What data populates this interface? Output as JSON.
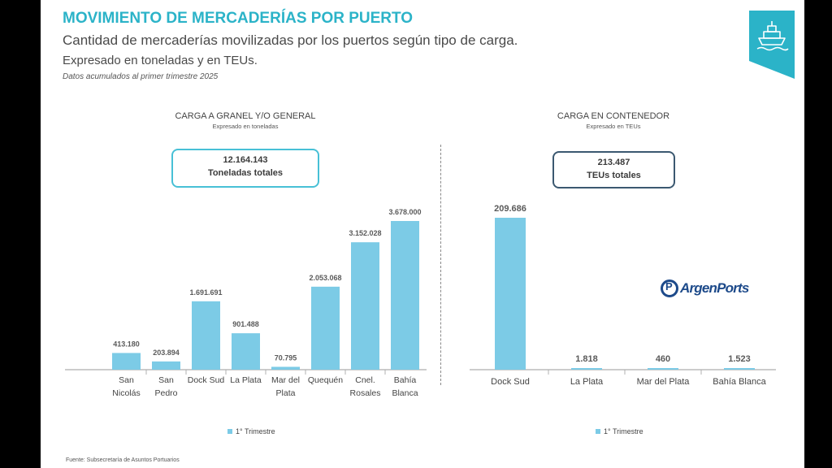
{
  "header": {
    "title": "MOVIMIENTO DE MERCADERÍAS POR PUERTO",
    "subtitle": "Cantidad de mercaderías movilizadas por los puertos según tipo de carga.",
    "units_line": "Expresado en toneladas y en TEUs.",
    "note": "Datos acumulados al primer trimestre 2025"
  },
  "badge_icon": "ship-icon",
  "logo": {
    "text": "ArgenPorts"
  },
  "left_panel": {
    "title": "CARGA A GRANEL Y/O GENERAL",
    "subtitle": "Expresado en toneladas",
    "total_value": "12.164.143",
    "total_label": "Toneladas totales",
    "legend": "1° Trimestre"
  },
  "right_panel": {
    "title": "CARGA EN CONTENEDOR",
    "subtitle": "Expresado en TEUs",
    "total_value": "213.487",
    "total_label": "TEUs totales",
    "legend": "1° Trimestre"
  },
  "source": "Fuente: Subsecretaría de Asuntos Portuarios",
  "colors": {
    "accent": "#2bb3c8",
    "bar": "#7ccbe6",
    "box_left": "#48c0d6",
    "box_right": "#3b5870",
    "text": "#444444"
  },
  "chart_data": [
    {
      "type": "bar",
      "title": "CARGA A GRANEL Y/O GENERAL",
      "subtitle": "Expresado en toneladas",
      "categories": [
        [
          "San",
          "Nicolás"
        ],
        [
          "San",
          "Pedro"
        ],
        [
          "Dock Sud"
        ],
        [
          "La Plata"
        ],
        [
          "Mar del",
          "Plata"
        ],
        [
          "Quequén"
        ],
        [
          "Cnel.",
          "Rosales"
        ],
        [
          "Bahía",
          "Blanca"
        ]
      ],
      "series": [
        {
          "name": "1° Trimestre",
          "values": [
            413180,
            203894,
            1691691,
            901488,
            70795,
            2053068,
            3152028,
            3678000
          ]
        }
      ],
      "labels": [
        "413.180",
        "203.894",
        "1.691.691",
        "901.488",
        "70.795",
        "2.053.068",
        "3.152.028",
        "3.678.000"
      ],
      "ylim": [
        0,
        3678000
      ],
      "legend": "bottom",
      "grid": false
    },
    {
      "type": "bar",
      "title": "CARGA EN CONTENEDOR",
      "subtitle": "Expresado en TEUs",
      "categories": [
        [
          "Dock Sud"
        ],
        [
          "La Plata"
        ],
        [
          "Mar del  Plata"
        ],
        [
          "Bahía Blanca"
        ]
      ],
      "series": [
        {
          "name": "1° Trimestre",
          "values": [
            209686,
            1818,
            460,
            1523
          ]
        }
      ],
      "labels": [
        "209.686",
        "1.818",
        "460",
        "1.523"
      ],
      "ylim": [
        0,
        209686
      ],
      "legend": "bottom",
      "grid": false
    }
  ]
}
